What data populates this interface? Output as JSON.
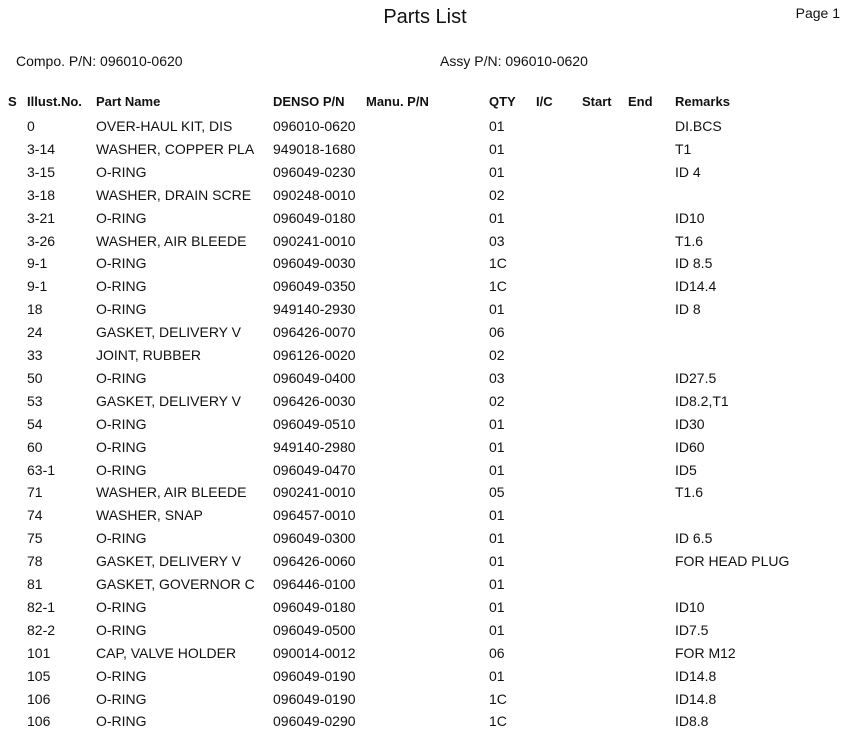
{
  "title": "Parts List",
  "page": "Page 1",
  "compo_pn": "Compo. P/N: 096010-0620",
  "assy_pn": "Assy P/N: 096010-0620",
  "columns": {
    "s": "S",
    "illust": "Illust.No.",
    "part_name": "Part Name",
    "denso_pn": "DENSO P/N",
    "manu_pn": "Manu. P/N",
    "qty": "QTY",
    "ic": "I/C",
    "start": "Start",
    "end": "End",
    "remarks": "Remarks"
  },
  "rows": [
    [
      "0",
      "OVER-HAUL KIT, DIS",
      "096010-0620",
      "01",
      "DI.BCS"
    ],
    [
      "3-14",
      "WASHER, COPPER PLA",
      "949018-1680",
      "01",
      "T1"
    ],
    [
      "3-15",
      "O-RING",
      "096049-0230",
      "01",
      "ID 4"
    ],
    [
      "3-18",
      "WASHER, DRAIN SCRE",
      "090248-0010",
      "02",
      ""
    ],
    [
      "3-21",
      "O-RING",
      "096049-0180",
      "01",
      "ID10"
    ],
    [
      "3-26",
      "WASHER, AIR BLEEDE",
      "090241-0010",
      "03",
      "T1.6"
    ],
    [
      "9-1",
      "O-RING",
      "096049-0030",
      "1C",
      "ID 8.5"
    ],
    [
      "9-1",
      "O-RING",
      "096049-0350",
      "1C",
      "ID14.4"
    ],
    [
      "18",
      "O-RING",
      "949140-2930",
      "01",
      "ID 8"
    ],
    [
      "24",
      "GASKET, DELIVERY V",
      "096426-0070",
      "06",
      ""
    ],
    [
      "33",
      "JOINT, RUBBER",
      "096126-0020",
      "02",
      ""
    ],
    [
      "50",
      "O-RING",
      "096049-0400",
      "03",
      "ID27.5"
    ],
    [
      "53",
      "GASKET, DELIVERY V",
      "096426-0030",
      "02",
      "ID8.2,T1"
    ],
    [
      "54",
      "O-RING",
      "096049-0510",
      "01",
      "ID30"
    ],
    [
      "60",
      "O-RING",
      "949140-2980",
      "01",
      "ID60"
    ],
    [
      "63-1",
      "O-RING",
      "096049-0470",
      "01",
      "ID5"
    ],
    [
      "71",
      "WASHER, AIR BLEEDE",
      "090241-0010",
      "05",
      "T1.6"
    ],
    [
      "74",
      "WASHER, SNAP",
      "096457-0010",
      "01",
      ""
    ],
    [
      "75",
      "O-RING",
      "096049-0300",
      "01",
      "ID 6.5"
    ],
    [
      "78",
      "GASKET, DELIVERY V",
      "096426-0060",
      "01",
      "FOR HEAD PLUG"
    ],
    [
      "81",
      "GASKET, GOVERNOR C",
      "096446-0100",
      "01",
      ""
    ],
    [
      "82-1",
      "O-RING",
      "096049-0180",
      "01",
      "ID10"
    ],
    [
      "82-2",
      "O-RING",
      "096049-0500",
      "01",
      "ID7.5"
    ],
    [
      "101",
      "CAP, VALVE HOLDER",
      "090014-0012",
      "06",
      "FOR M12"
    ],
    [
      "105",
      "O-RING",
      "096049-0190",
      "01",
      "ID14.8"
    ],
    [
      "106",
      "O-RING",
      "096049-0190",
      "1C",
      "ID14.8"
    ],
    [
      "106",
      "O-RING",
      "096049-0290",
      "1C",
      "ID8.8"
    ]
  ]
}
